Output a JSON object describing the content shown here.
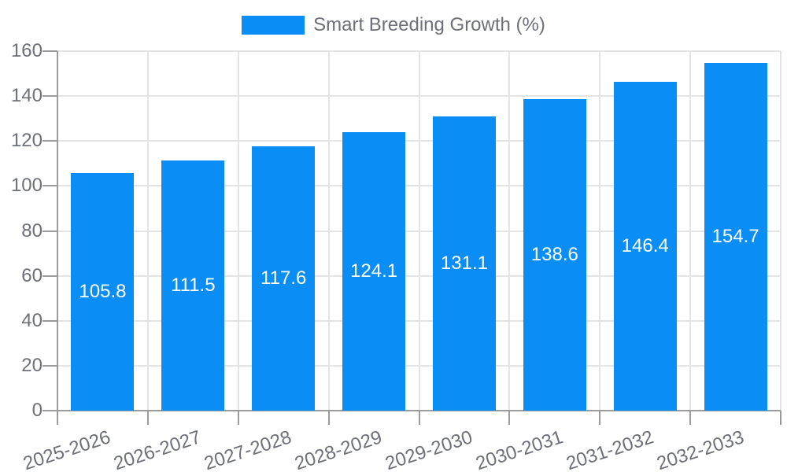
{
  "chart_data": {
    "type": "bar",
    "title": "",
    "legend": {
      "label": "Smart Breeding Growth (%)",
      "position": "top"
    },
    "categories": [
      "2025-2026",
      "2026-2027",
      "2027-2028",
      "2028-2029",
      "2029-2030",
      "2030-2031",
      "2031-2032",
      "2032-2033"
    ],
    "series": [
      {
        "name": "Smart Breeding Growth (%)",
        "values": [
          105.8,
          111.5,
          117.6,
          124.1,
          131.1,
          138.6,
          146.4,
          154.7
        ]
      }
    ],
    "value_labels": [
      "105.8",
      "111.5",
      "117.6",
      "124.1",
      "131.1",
      "138.6",
      "146.4",
      "154.7"
    ],
    "xlabel": "",
    "ylabel": "",
    "ylim": [
      0,
      160
    ],
    "yticks": [
      0,
      20,
      40,
      60,
      80,
      100,
      120,
      140,
      160
    ],
    "grid": true,
    "colors": {
      "bar": "#0a8ef5",
      "bar_label": "#ffffff",
      "axis_line": "#9b9b9b",
      "gridline": "#e4e4e4",
      "tick_label": "#6e7079",
      "legend_text": "#6e7079",
      "background": "#ffffff"
    }
  }
}
